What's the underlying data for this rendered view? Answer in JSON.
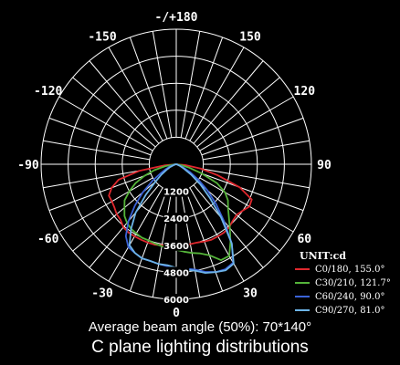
{
  "title": "C plane lighting distributions",
  "beam_angle_text": "Average beam angle (50%): 70*140°",
  "chart_data": {
    "type": "polar",
    "unit_label": "UNIT:cd",
    "angle_labels": [
      {
        "angle": 180,
        "text": "-/+180"
      },
      {
        "angle": -150,
        "text": "-150"
      },
      {
        "angle": 150,
        "text": "150"
      },
      {
        "angle": -120,
        "text": "-120"
      },
      {
        "angle": 120,
        "text": "120"
      },
      {
        "angle": -90,
        "text": "-90"
      },
      {
        "angle": 90,
        "text": "90"
      },
      {
        "angle": -60,
        "text": "-60"
      },
      {
        "angle": 60,
        "text": "60"
      },
      {
        "angle": -30,
        "text": "-30"
      },
      {
        "angle": 30,
        "text": "30"
      },
      {
        "angle": 0,
        "text": "0"
      }
    ],
    "radial_ticks": [
      1200,
      2400,
      3600,
      4800,
      6000
    ],
    "radial_tick_labels": [
      "1200",
      "2400",
      "3600",
      "4800",
      "6000"
    ],
    "rmax": 6000,
    "gridlines_every_deg": 10,
    "legend_position": "bottom-right",
    "series": [
      {
        "name": "C0/180, 155.0°",
        "color": "#e0282e",
        "angles": [
          -90,
          -85,
          -80,
          -75,
          -70,
          -65,
          -60,
          -55,
          -50,
          -45,
          -40,
          -35,
          -30,
          -25,
          -20,
          -15,
          -10,
          -5,
          0,
          5,
          10,
          15,
          20,
          25,
          30,
          35,
          40,
          45,
          50,
          55,
          60,
          65,
          70,
          75,
          80,
          85,
          90
        ],
        "values": [
          0,
          500,
          1650,
          2650,
          3050,
          3300,
          3300,
          3350,
          3450,
          3500,
          3650,
          3700,
          3700,
          3700,
          3700,
          3700,
          3650,
          3600,
          3600,
          3600,
          3600,
          3600,
          3650,
          3700,
          3700,
          3700,
          3650,
          3550,
          3500,
          3600,
          3750,
          3700,
          3000,
          1900,
          1100,
          400,
          0
        ]
      },
      {
        "name": "C30/210, 121.7°",
        "color": "#55b43a",
        "angles": [
          -90,
          -85,
          -80,
          -75,
          -70,
          -65,
          -60,
          -55,
          -50,
          -45,
          -40,
          -35,
          -30,
          -25,
          -20,
          -15,
          -10,
          -5,
          0,
          5,
          10,
          15,
          20,
          25,
          30,
          35,
          40,
          45,
          50,
          55,
          60,
          65,
          70,
          75,
          80,
          85,
          90
        ],
        "values": [
          0,
          100,
          500,
          1000,
          1500,
          2000,
          2400,
          2800,
          3000,
          3250,
          3400,
          3500,
          3550,
          3600,
          3600,
          3650,
          3700,
          3750,
          3800,
          3900,
          4000,
          4100,
          4300,
          4700,
          4700,
          4200,
          3700,
          3300,
          3000,
          2800,
          2500,
          2000,
          1200,
          600,
          250,
          50,
          0
        ]
      },
      {
        "name": "C60/240, 90.0°",
        "color": "#3b63d8",
        "angles": [
          -90,
          -85,
          -80,
          -75,
          -70,
          -65,
          -60,
          -55,
          -50,
          -45,
          -40,
          -35,
          -30,
          -25,
          -20,
          -15,
          -10,
          -5,
          0,
          5,
          10,
          15,
          20,
          25,
          30,
          35,
          40,
          45,
          50,
          55,
          60,
          65,
          70,
          75,
          80,
          85,
          90
        ],
        "values": [
          0,
          0,
          50,
          150,
          300,
          500,
          800,
          1300,
          1950,
          2600,
          3300,
          3900,
          4250,
          4350,
          4450,
          4450,
          4500,
          4550,
          4600,
          4650,
          4750,
          4950,
          5100,
          5150,
          5050,
          4300,
          3300,
          2500,
          1800,
          1200,
          700,
          350,
          150,
          50,
          0,
          0,
          0
        ]
      },
      {
        "name": "C90/270, 81.0°",
        "color": "#6db4e8",
        "angles": [
          -90,
          -85,
          -80,
          -75,
          -70,
          -65,
          -60,
          -55,
          -50,
          -45,
          -40,
          -35,
          -30,
          -25,
          -20,
          -15,
          -10,
          -5,
          0,
          5,
          10,
          15,
          20,
          25,
          30,
          35,
          40,
          45,
          50,
          55,
          60,
          65,
          70,
          75,
          80,
          85,
          90
        ],
        "values": [
          0,
          0,
          0,
          50,
          150,
          300,
          500,
          800,
          1200,
          1900,
          2800,
          3500,
          4150,
          4350,
          4450,
          4450,
          4500,
          4500,
          4600,
          4700,
          4800,
          5000,
          5100,
          5200,
          5100,
          4300,
          3100,
          2100,
          1400,
          800,
          400,
          200,
          50,
          0,
          0,
          0,
          0
        ]
      }
    ]
  }
}
